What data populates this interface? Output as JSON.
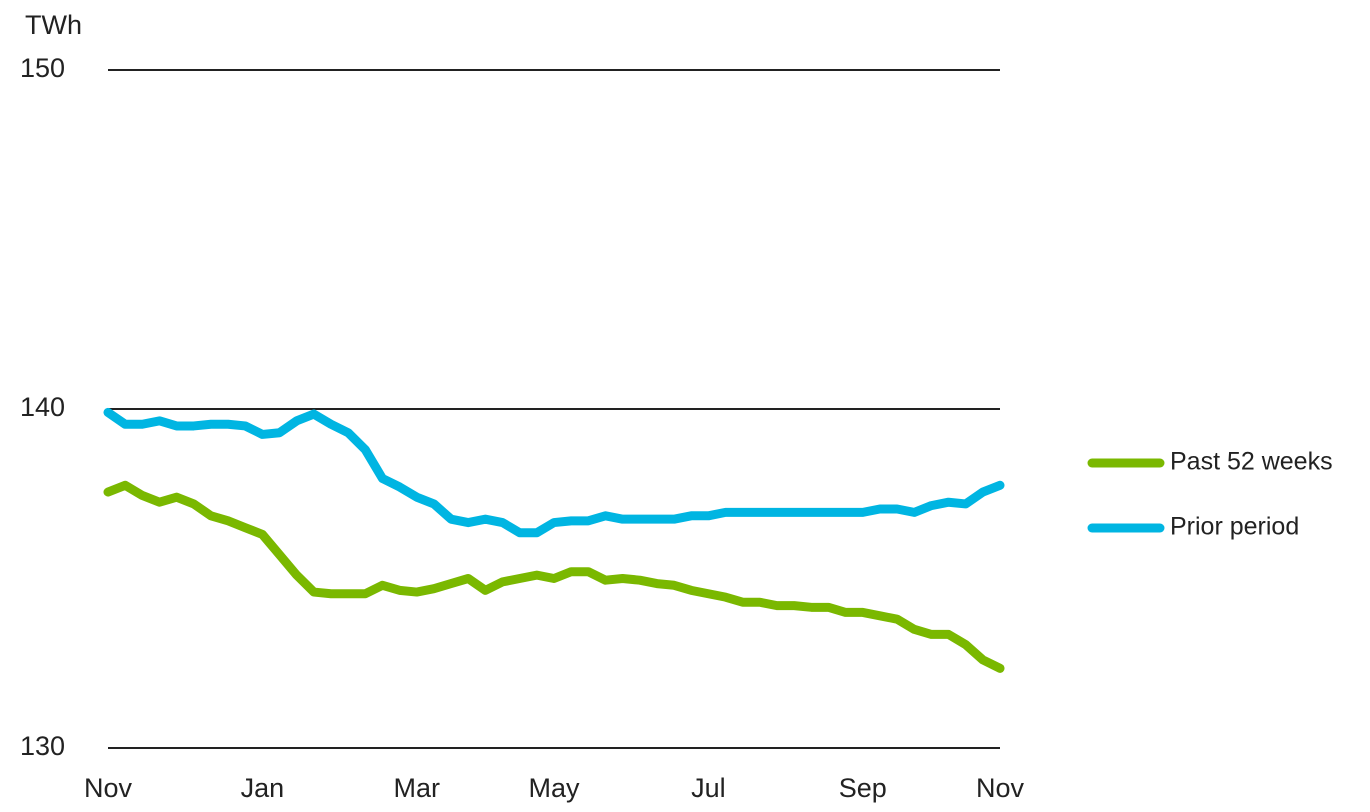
{
  "chart_data": {
    "type": "line",
    "y_label": "TWh",
    "categories": [
      "Nov",
      null,
      null,
      null,
      null,
      null,
      null,
      null,
      null,
      "Jan",
      null,
      null,
      null,
      null,
      null,
      null,
      null,
      null,
      "Mar",
      null,
      null,
      null,
      null,
      null,
      null,
      null,
      "May",
      null,
      null,
      null,
      null,
      null,
      null,
      null,
      null,
      "Jul",
      null,
      null,
      null,
      null,
      null,
      null,
      null,
      null,
      "Sep",
      null,
      null,
      null,
      null,
      null,
      null,
      null,
      "Nov"
    ],
    "series": [
      {
        "name": "Past 52 weeks",
        "color": "#7ab800",
        "values": [
          137.55,
          137.75,
          137.45,
          137.25,
          137.4,
          137.2,
          136.85,
          136.7,
          136.5,
          136.3,
          135.7,
          135.1,
          134.6,
          134.55,
          134.55,
          134.55,
          134.8,
          134.65,
          134.6,
          134.7,
          134.85,
          135,
          134.65,
          134.9,
          135,
          135.1,
          135,
          135.2,
          135.2,
          134.95,
          135,
          134.95,
          134.85,
          134.8,
          134.65,
          134.55,
          134.45,
          134.3,
          134.3,
          134.2,
          134.2,
          134.15,
          134.15,
          134,
          134,
          133.9,
          133.8,
          133.5,
          133.35,
          133.35,
          133.05,
          132.6,
          132.35
        ]
      },
      {
        "name": "Prior period",
        "color": "#00b5e2",
        "values": [
          139.9,
          139.55,
          139.55,
          139.65,
          139.5,
          139.5,
          139.55,
          139.55,
          139.5,
          139.25,
          139.3,
          139.65,
          139.85,
          139.55,
          139.3,
          138.8,
          137.95,
          137.7,
          137.4,
          137.2,
          136.75,
          136.65,
          136.75,
          136.65,
          136.35,
          136.35,
          136.65,
          136.7,
          136.7,
          136.85,
          136.75,
          136.75,
          136.75,
          136.75,
          136.85,
          136.85,
          136.95,
          136.95,
          136.95,
          136.95,
          136.95,
          136.95,
          136.95,
          136.95,
          136.95,
          137.05,
          137.05,
          136.95,
          137.15,
          137.25,
          137.2,
          137.55,
          137.75
        ]
      }
    ],
    "ylim": [
      130,
      150
    ],
    "yticks": [
      130,
      140,
      150
    ],
    "grid": true,
    "legend": "right"
  }
}
